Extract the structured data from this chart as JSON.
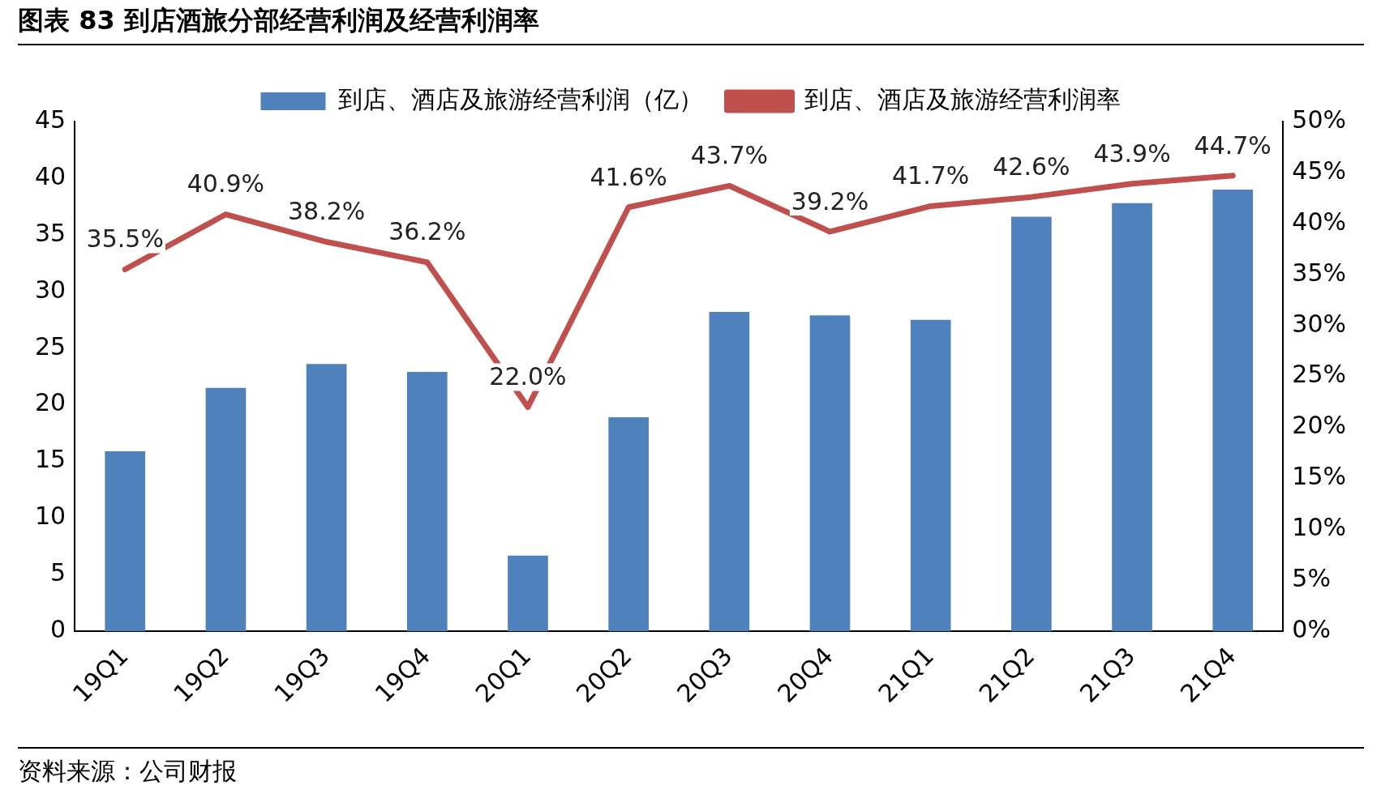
{
  "chart_data": {
    "type": "bar",
    "title": "图表 83  到店酒旅分部经营利润及经营利润率",
    "categories": [
      "19Q1",
      "19Q2",
      "19Q3",
      "19Q4",
      "20Q1",
      "20Q2",
      "20Q3",
      "20Q4",
      "21Q1",
      "21Q2",
      "21Q3",
      "21Q4"
    ],
    "series": [
      {
        "name": "到店、酒店及旅游经营利润（亿）",
        "color": "#4f81bd",
        "values": [
          15.9,
          21.5,
          23.6,
          22.9,
          6.7,
          18.9,
          28.2,
          27.9,
          27.5,
          36.6,
          37.8,
          39.0
        ]
      },
      {
        "name": "到店、酒店及旅游经营利润率",
        "type": "line",
        "axis": "y2",
        "color": "#c0504d",
        "values": [
          35.5,
          40.9,
          38.2,
          36.2,
          22.0,
          41.6,
          43.7,
          39.2,
          41.7,
          42.6,
          43.9,
          44.7
        ],
        "value_labels": [
          "35.5%",
          "40.9%",
          "38.2%",
          "36.2%",
          "22.0%",
          "41.6%",
          "43.7%",
          "39.2%",
          "41.7%",
          "42.6%",
          "43.9%",
          "44.7%"
        ]
      }
    ],
    "ylim": [
      0,
      45
    ],
    "yticks": [
      0,
      5,
      10,
      15,
      20,
      25,
      30,
      35,
      40,
      45
    ],
    "y2lim": [
      0,
      50
    ],
    "y2ticks": [
      {
        "value": 0,
        "label": "0%"
      },
      {
        "value": 5,
        "label": "5%"
      },
      {
        "value": 10,
        "label": "10%"
      },
      {
        "value": 15,
        "label": "15%"
      },
      {
        "value": 20,
        "label": "20%"
      },
      {
        "value": 25,
        "label": "25%"
      },
      {
        "value": 30,
        "label": "30%"
      },
      {
        "value": 35,
        "label": "35%"
      },
      {
        "value": 40,
        "label": "40%"
      },
      {
        "value": 45,
        "label": "45%"
      },
      {
        "value": 50,
        "label": "50%"
      }
    ],
    "grid": false,
    "legend": "top",
    "marker": "none",
    "line_style": "solid",
    "annotations": [
      "资料来源：公司财报"
    ]
  }
}
